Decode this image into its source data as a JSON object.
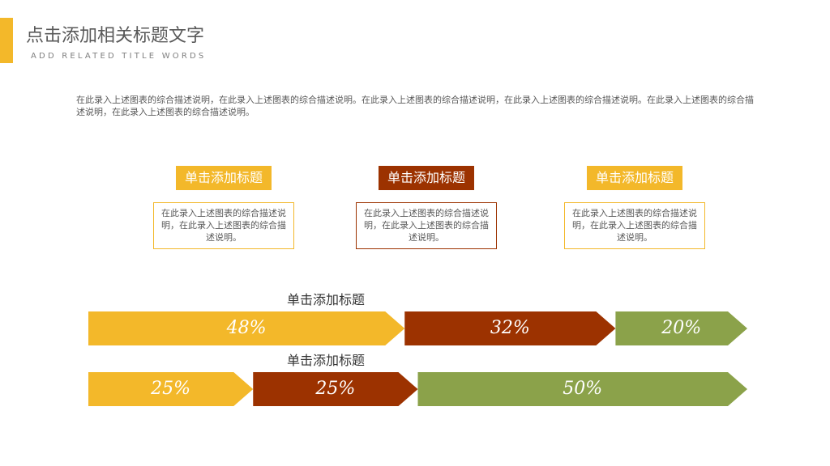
{
  "header": {
    "title": "点击添加相关标题文字",
    "subtitle": "ADD RELATED TITLE WORDS"
  },
  "description": "在此录入上述图表的综合描述说明，在此录入上述图表的综合描述说明。在此录入上述图表的综合描述说明，在此录入上述图表的综合描述说明。在此录入上述图表的综合描述说明，在此录入上述图表的综合描述说明。",
  "cards": [
    {
      "title": "单击添加标题",
      "text": "在此录入上述图表的综合描述说明，在此录入上述图表的综合描述说明。",
      "color": "#f3b82a"
    },
    {
      "title": "单击添加标题",
      "text": "在此录入上述图表的综合描述说明，在此录入上述图表的综合描述说明。",
      "color": "#9c3200"
    },
    {
      "title": "单击添加标题",
      "text": "在此录入上述图表的综合描述说明，在此录入上述图表的综合描述说明。",
      "color": "#f3b82a"
    }
  ],
  "chart_data": {
    "type": "arrow-bar",
    "rows": [
      {
        "title": "单击添加标题",
        "values": [
          48,
          32,
          20
        ],
        "value_labels": [
          "48%",
          "32%",
          "20%"
        ],
        "colors": [
          "#f3b82a",
          "#9c3200",
          "#8ba24a"
        ]
      },
      {
        "title": "单击添加标题",
        "values": [
          25,
          25,
          50
        ],
        "value_labels": [
          "25%",
          "25%",
          "50%"
        ],
        "colors": [
          "#f3b82a",
          "#9c3200",
          "#8ba24a"
        ]
      }
    ]
  }
}
